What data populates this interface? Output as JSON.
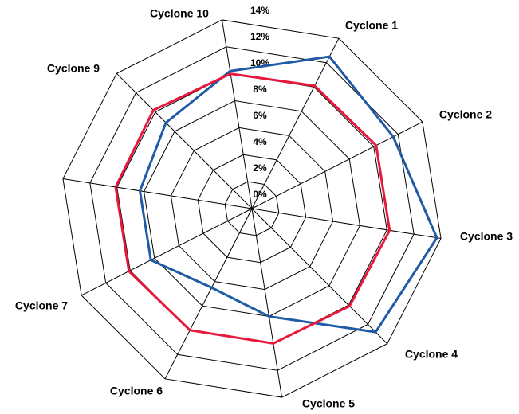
{
  "chart_data": {
    "type": "radar",
    "categories": [
      "Cyclone 1",
      "Cyclone 2",
      "Cyclone 3",
      "Cyclone 4",
      "Cyclone 5",
      "Cyclone 6",
      "Cyclone 7",
      null,
      "Cyclone 9",
      "Cyclone 10"
    ],
    "series": [
      {
        "color": "#1f5aa6",
        "values": [
          12.5,
          11.6,
          13.7,
          12.8,
          8.0,
          6.5,
          8.3,
          8.3,
          8.9,
          10.2
        ]
      },
      {
        "color": "#e8173c",
        "values": [
          10.1,
          10.2,
          10.2,
          10.1,
          10.0,
          10.0,
          10.1,
          10.1,
          10.2,
          10.0
        ]
      }
    ],
    "ylim": [
      0,
      14
    ],
    "yticks": [
      {
        "value": 0,
        "label": "0%"
      },
      {
        "value": 2,
        "label": "2%"
      },
      {
        "value": 4,
        "label": "4%"
      },
      {
        "value": 6,
        "label": "6%"
      },
      {
        "value": 8,
        "label": "8%"
      },
      {
        "value": 10,
        "label": "10%"
      },
      {
        "value": 12,
        "label": "12%"
      },
      {
        "value": 14,
        "label": "14%"
      }
    ],
    "grid": true
  }
}
